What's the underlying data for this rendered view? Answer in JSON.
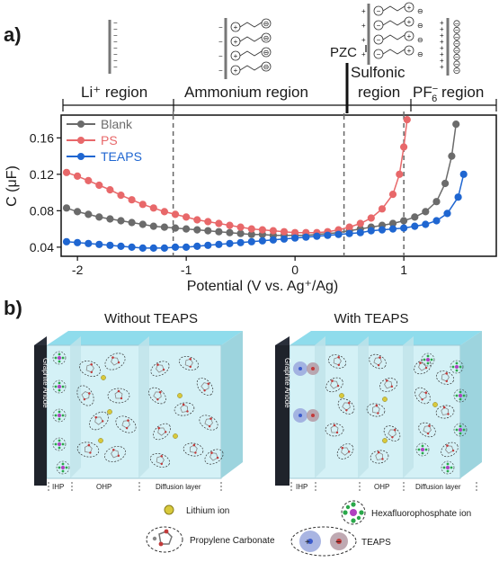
{
  "panels": {
    "a": "a)",
    "b": "b)"
  },
  "regions": {
    "li": "Li⁺ region",
    "ammonium": "Ammonium region",
    "sulfonic_1": "Sulfonic",
    "sulfonic_2": "region",
    "pf6_main": "PF",
    "pf6_sub": "6",
    "pf6_sup": "−",
    "pf6_tail": " region",
    "pzc": "PZC"
  },
  "chart_data": {
    "type": "scatter",
    "xlabel": "Potential (V vs. Ag⁺/Ag)",
    "ylabel": "C (μF)",
    "xlim": [
      -2.15,
      1.85
    ],
    "ylim": [
      0.03,
      0.185
    ],
    "xticks": [
      -2,
      -1,
      0,
      1
    ],
    "yticks": [
      0.04,
      0.08,
      0.12,
      0.16
    ],
    "ytick_labels": [
      "0.04",
      "0.08",
      "0.12",
      "0.16"
    ],
    "xtick_labels": [
      "-2",
      "-1",
      "0",
      "1"
    ],
    "legend_position": "top-left",
    "region_boundaries": [
      -1.12,
      0.45,
      1.0
    ],
    "pzc_x": 0.45,
    "series": [
      {
        "name": "Blank",
        "color": "#6b6b6b",
        "points": [
          [
            -2.1,
            0.083
          ],
          [
            -2.0,
            0.079
          ],
          [
            -1.9,
            0.076
          ],
          [
            -1.8,
            0.073
          ],
          [
            -1.7,
            0.071
          ],
          [
            -1.6,
            0.069
          ],
          [
            -1.5,
            0.067
          ],
          [
            -1.4,
            0.065
          ],
          [
            -1.3,
            0.063
          ],
          [
            -1.2,
            0.062
          ],
          [
            -1.1,
            0.061
          ],
          [
            -1.0,
            0.06
          ],
          [
            -0.9,
            0.059
          ],
          [
            -0.8,
            0.058
          ],
          [
            -0.7,
            0.057
          ],
          [
            -0.6,
            0.056
          ],
          [
            -0.5,
            0.055
          ],
          [
            -0.4,
            0.054
          ],
          [
            -0.3,
            0.054
          ],
          [
            -0.2,
            0.053
          ],
          [
            -0.1,
            0.053
          ],
          [
            0.0,
            0.053
          ],
          [
            0.1,
            0.053
          ],
          [
            0.2,
            0.054
          ],
          [
            0.3,
            0.055
          ],
          [
            0.4,
            0.056
          ],
          [
            0.5,
            0.058
          ],
          [
            0.6,
            0.06
          ],
          [
            0.7,
            0.062
          ],
          [
            0.8,
            0.064
          ],
          [
            0.9,
            0.066
          ],
          [
            1.0,
            0.069
          ],
          [
            1.1,
            0.073
          ],
          [
            1.2,
            0.079
          ],
          [
            1.3,
            0.09
          ],
          [
            1.38,
            0.11
          ],
          [
            1.44,
            0.14
          ],
          [
            1.48,
            0.175
          ]
        ]
      },
      {
        "name": "PS",
        "color": "#e8686a",
        "points": [
          [
            -2.1,
            0.122
          ],
          [
            -2.0,
            0.118
          ],
          [
            -1.9,
            0.113
          ],
          [
            -1.8,
            0.108
          ],
          [
            -1.7,
            0.103
          ],
          [
            -1.6,
            0.097
          ],
          [
            -1.5,
            0.092
          ],
          [
            -1.4,
            0.087
          ],
          [
            -1.3,
            0.083
          ],
          [
            -1.2,
            0.079
          ],
          [
            -1.1,
            0.076
          ],
          [
            -1.0,
            0.073
          ],
          [
            -0.9,
            0.07
          ],
          [
            -0.8,
            0.068
          ],
          [
            -0.7,
            0.066
          ],
          [
            -0.6,
            0.064
          ],
          [
            -0.5,
            0.062
          ],
          [
            -0.4,
            0.06
          ],
          [
            -0.3,
            0.059
          ],
          [
            -0.2,
            0.058
          ],
          [
            -0.1,
            0.057
          ],
          [
            0.0,
            0.056
          ],
          [
            0.1,
            0.056
          ],
          [
            0.2,
            0.056
          ],
          [
            0.3,
            0.057
          ],
          [
            0.4,
            0.059
          ],
          [
            0.5,
            0.062
          ],
          [
            0.6,
            0.066
          ],
          [
            0.7,
            0.072
          ],
          [
            0.8,
            0.082
          ],
          [
            0.9,
            0.098
          ],
          [
            0.96,
            0.12
          ],
          [
            1.0,
            0.15
          ],
          [
            1.03,
            0.18
          ]
        ]
      },
      {
        "name": "TEAPS",
        "color": "#1f66d1",
        "points": [
          [
            -2.1,
            0.046
          ],
          [
            -2.0,
            0.045
          ],
          [
            -1.9,
            0.044
          ],
          [
            -1.8,
            0.043
          ],
          [
            -1.7,
            0.042
          ],
          [
            -1.6,
            0.041
          ],
          [
            -1.5,
            0.04
          ],
          [
            -1.4,
            0.039
          ],
          [
            -1.3,
            0.039
          ],
          [
            -1.2,
            0.039
          ],
          [
            -1.1,
            0.04
          ],
          [
            -1.0,
            0.04
          ],
          [
            -0.9,
            0.041
          ],
          [
            -0.8,
            0.042
          ],
          [
            -0.7,
            0.043
          ],
          [
            -0.6,
            0.044
          ],
          [
            -0.5,
            0.045
          ],
          [
            -0.4,
            0.046
          ],
          [
            -0.3,
            0.047
          ],
          [
            -0.2,
            0.048
          ],
          [
            -0.1,
            0.049
          ],
          [
            0.0,
            0.05
          ],
          [
            0.1,
            0.051
          ],
          [
            0.2,
            0.052
          ],
          [
            0.3,
            0.053
          ],
          [
            0.4,
            0.054
          ],
          [
            0.5,
            0.055
          ],
          [
            0.6,
            0.056
          ],
          [
            0.7,
            0.058
          ],
          [
            0.8,
            0.059
          ],
          [
            0.9,
            0.06
          ],
          [
            1.0,
            0.061
          ],
          [
            1.1,
            0.063
          ],
          [
            1.2,
            0.065
          ],
          [
            1.3,
            0.069
          ],
          [
            1.4,
            0.077
          ],
          [
            1.5,
            0.095
          ],
          [
            1.55,
            0.12
          ]
        ]
      }
    ]
  },
  "schematic": {
    "left_title": "Without TEAPS",
    "right_title": "With TEAPS",
    "electrode": "Graphite Anode",
    "layers": [
      "IHP",
      "OHP",
      "Diffusion layer"
    ],
    "legend": {
      "lithium": "Lithium ion",
      "hexafluoro": "Hexafluorophosphate ion",
      "pc": "Propylene Carbonate",
      "teaps": "TEAPS"
    },
    "colors": {
      "lithium": "#d8c93b",
      "pf6": "#2aa84a",
      "pc": "#c23a3a",
      "teaps": "#8a9bd6"
    }
  }
}
